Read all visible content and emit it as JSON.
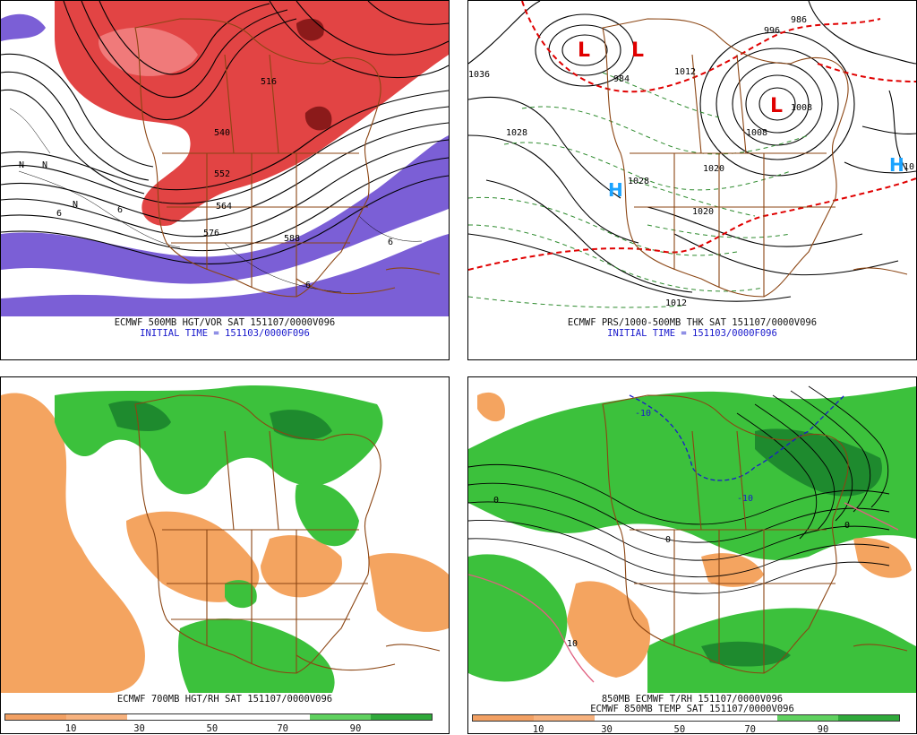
{
  "panels": {
    "p500": {
      "title": "ECMWF 500MB HGT/VOR SAT 151107/0000V096",
      "init": "INITIAL TIME = 151103/0000F096",
      "contour_labels": [
        "516",
        "540",
        "552",
        "564",
        "576",
        "588",
        "6",
        "6",
        "6",
        "6",
        "N",
        "N",
        "N"
      ]
    },
    "psfc": {
      "title": "ECMWF PRS/1000-500MB THK SAT 151107/0000V096",
      "init": "INITIAL TIME = 151103/0000F096",
      "contour_labels": [
        "1036",
        "984",
        "1012",
        "1028",
        "1028",
        "1020",
        "1020",
        "1012",
        "996",
        "986",
        "1008",
        "1008",
        "10"
      ],
      "lows": [
        "L",
        "L",
        "L"
      ],
      "highs": [
        "H",
        "H"
      ]
    },
    "p700": {
      "title": "ECMWF 700MB HGT/RH SAT 151107/0000V096"
    },
    "p850": {
      "title1": "850MB ECMWF T/RH 151107/0000V096",
      "title2": "ECMWF 850MB TEMP SAT 151107/0000V096",
      "contour_labels": [
        "-10",
        "-10",
        "0",
        "0",
        "0",
        "10"
      ]
    }
  },
  "colorbar": {
    "ticks": [
      "10",
      "30",
      "50",
      "70",
      "90"
    ],
    "colors": [
      "#f2a063",
      "#fbd2a6",
      "#ffffff",
      "#ffffff",
      "#5fd15f",
      "#2fa93a",
      "#1b7a2a"
    ]
  },
  "colors": {
    "vort_pos": "#e24444",
    "vort_pos_dark": "#8b1a1a",
    "vort_neg": "#7b5fd6",
    "dry": "#f4a460",
    "moist": "#3cc13c",
    "moist_dark": "#1e8a2e",
    "map_lines": "#8b4513",
    "contour": "#000000",
    "thick_dash": "#e00000",
    "thick_dash_green": "#2e8b2e",
    "high": "#1aa3ff",
    "low": "#e00000"
  }
}
